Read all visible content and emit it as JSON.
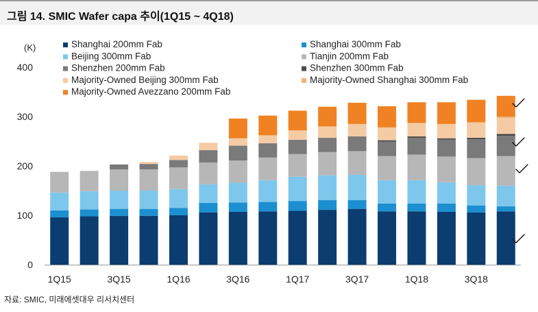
{
  "title": "그림 14. SMIC Wafer capa 추이(1Q15 ~ 4Q18)",
  "source": "자료: SMIC, 미래에셋대우 리서치센터",
  "chart_data": {
    "type": "bar",
    "stacked": true,
    "unit_label": "(K)",
    "ylim": [
      0,
      400
    ],
    "yticks": [
      0,
      100,
      200,
      300,
      400
    ],
    "categories": [
      "1Q15",
      "2Q15",
      "3Q15",
      "4Q15",
      "1Q16",
      "2Q16",
      "3Q16",
      "4Q16",
      "1Q17",
      "2Q17",
      "3Q17",
      "4Q17",
      "1Q18",
      "2Q18",
      "3Q18",
      "4Q18"
    ],
    "xtick_labels": [
      "1Q15",
      "",
      "3Q15",
      "",
      "1Q16",
      "",
      "3Q16",
      "",
      "1Q17",
      "",
      "3Q17",
      "",
      "1Q18",
      "",
      "3Q18",
      ""
    ],
    "series": [
      {
        "name": "Shanghai 200mm Fab",
        "color": "#0b3d70",
        "values": [
          96,
          98,
          99,
          99,
          100,
          106,
          107,
          108,
          109,
          111,
          113,
          108,
          108,
          107,
          106,
          108
        ]
      },
      {
        "name": "Shanghai 300mm Fab",
        "color": "#1b8fcf",
        "values": [
          14,
          14,
          14,
          14,
          15,
          19,
          19,
          19,
          20,
          20,
          18,
          16,
          16,
          17,
          14,
          10
        ]
      },
      {
        "name": "Beijing 300mm Fab",
        "color": "#7ec7ec",
        "values": [
          36,
          37,
          37,
          37,
          38,
          38,
          40,
          44,
          49,
          50,
          51,
          47,
          47,
          43,
          41,
          42
        ]
      },
      {
        "name": "Tianjin 200mm Fab",
        "color": "#b7b7b7",
        "values": [
          42,
          41,
          43,
          43,
          44,
          44,
          45,
          46,
          46,
          47,
          48,
          49,
          52,
          52,
          55,
          60
        ]
      },
      {
        "name": "Shenzhen 200mm Fab",
        "color": "#7a7a7a",
        "values": [
          0,
          0,
          10,
          11,
          15,
          25,
          30,
          29,
          29,
          29,
          30,
          29,
          34,
          34,
          38,
          41
        ]
      },
      {
        "name": "Shenzhen 300mm Fab",
        "color": "#4e4e4e",
        "values": [
          0,
          0,
          0,
          0,
          0,
          0,
          0,
          0,
          0,
          0,
          0,
          3,
          3,
          3,
          3,
          4
        ]
      },
      {
        "name": "Majority-Owned Beijing 300mm Fab",
        "color": "#f5cba4",
        "values": [
          0,
          0,
          0,
          4,
          9,
          15,
          15,
          16,
          19,
          23,
          25,
          26,
          27,
          29,
          30,
          32
        ]
      },
      {
        "name": "Majority-Owned Shanghai 300mm Fab",
        "color": "#f2b179",
        "values": [
          0,
          0,
          0,
          0,
          0,
          0,
          0,
          0,
          0,
          0,
          0,
          0,
          0,
          0,
          2,
          3
        ]
      },
      {
        "name": "Majority-Owned Avezzano 200mm Fab",
        "color": "#f08223",
        "values": [
          0,
          0,
          0,
          0,
          0,
          0,
          40,
          40,
          40,
          40,
          43,
          43,
          42,
          44,
          45,
          42
        ]
      }
    ]
  }
}
